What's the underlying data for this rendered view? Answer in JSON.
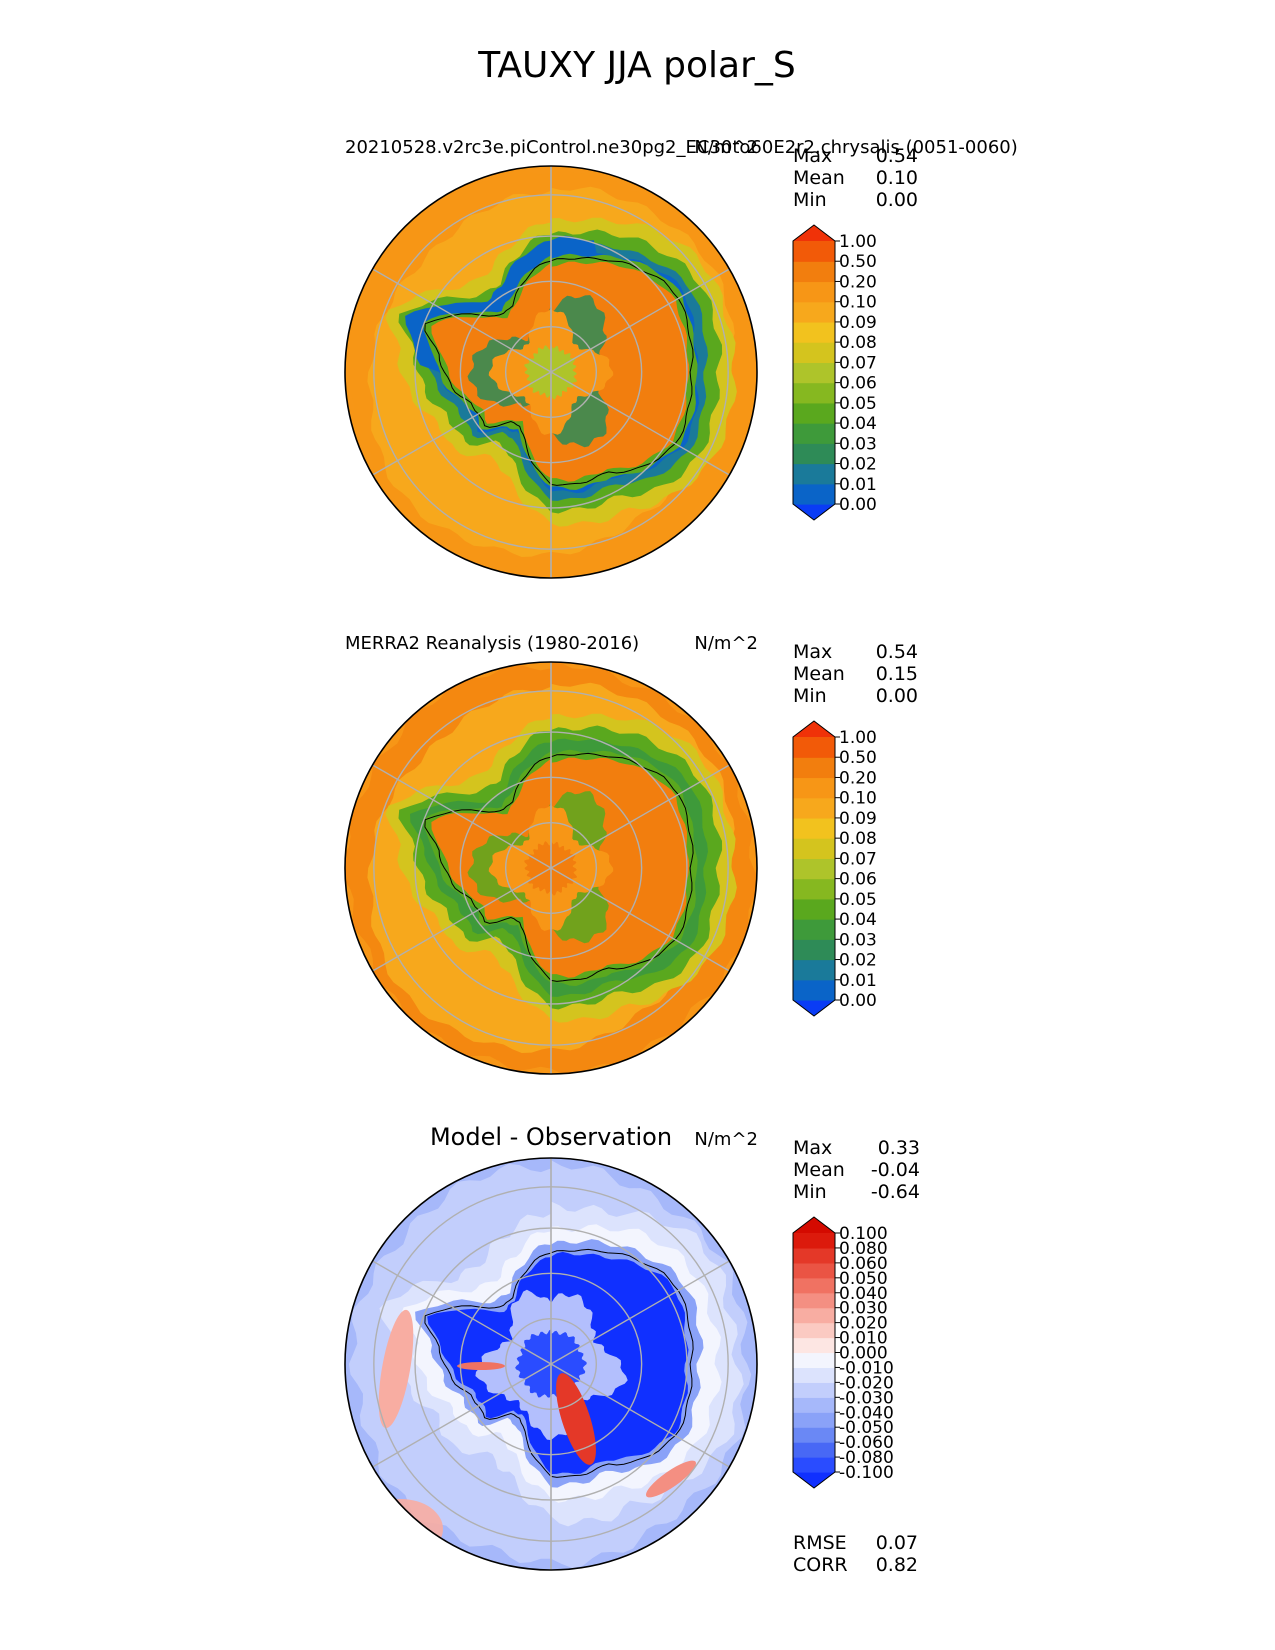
{
  "figure": {
    "suptitle": "TAUXY JJA polar_S"
  },
  "panels": [
    {
      "id": "test",
      "title_left": "20210528.v2rc3e.piControl.ne30pg2_EC30to60E2r2.chrysalis (0051-0060)",
      "units": "N/m^2",
      "stats": [
        {
          "label": "Max",
          "value": "0.54"
        },
        {
          "label": "Mean",
          "value": "0.10"
        },
        {
          "label": "Min",
          "value": "0.00"
        }
      ]
    },
    {
      "id": "reference",
      "title_left": "MERRA2 Reanalysis (1980-2016)",
      "units": "N/m^2",
      "stats": [
        {
          "label": "Max",
          "value": "0.54"
        },
        {
          "label": "Mean",
          "value": "0.15"
        },
        {
          "label": "Min",
          "value": "0.00"
        }
      ]
    },
    {
      "id": "diff",
      "title_center": "Model - Observation",
      "units": "N/m^2",
      "stats": [
        {
          "label": "Max",
          "value": "0.33"
        },
        {
          "label": "Mean",
          "value": "-0.04"
        },
        {
          "label": "Min",
          "value": "-0.64"
        }
      ],
      "extra_stats": [
        {
          "label": "RMSE",
          "value": "0.07"
        },
        {
          "label": "CORR",
          "value": "0.82"
        }
      ]
    }
  ],
  "chart_data": [
    {
      "type": "heatmap",
      "projection": "south polar stereographic",
      "title": "20210528.v2rc3e.piControl.ne30pg2_EC30to60E2r2.chrysalis (0051-0060)",
      "units": "N/m^2",
      "colorbar": {
        "levels": [
          "0.00",
          "0.01",
          "0.02",
          "0.03",
          "0.04",
          "0.05",
          "0.06",
          "0.07",
          "0.08",
          "0.09",
          "0.10",
          "0.20",
          "0.50",
          "1.00"
        ],
        "colors": [
          "#0a3cf5",
          "#0a64c8",
          "#1a7a9a",
          "#2e8b57",
          "#3e9a3a",
          "#5aa81e",
          "#86b820",
          "#aec42a",
          "#d4c41e",
          "#f2c21e",
          "#f7a81c",
          "#f79616",
          "#f27e0e",
          "#f25a08",
          "#f03208"
        ],
        "extend": "both"
      },
      "stats": {
        "max": 0.54,
        "mean": 0.1,
        "min": 0.0
      }
    },
    {
      "type": "heatmap",
      "projection": "south polar stereographic",
      "title": "MERRA2 Reanalysis (1980-2016)",
      "units": "N/m^2",
      "colorbar": {
        "levels": [
          "0.00",
          "0.01",
          "0.02",
          "0.03",
          "0.04",
          "0.05",
          "0.06",
          "0.07",
          "0.08",
          "0.09",
          "0.10",
          "0.20",
          "0.50",
          "1.00"
        ],
        "colors": [
          "#0a3cf5",
          "#0a64c8",
          "#1a7a9a",
          "#2e8b57",
          "#3e9a3a",
          "#5aa81e",
          "#86b820",
          "#aec42a",
          "#d4c41e",
          "#f2c21e",
          "#f7a81c",
          "#f79616",
          "#f27e0e",
          "#f25a08",
          "#f03208"
        ],
        "extend": "both"
      },
      "stats": {
        "max": 0.54,
        "mean": 0.15,
        "min": 0.0
      }
    },
    {
      "type": "heatmap",
      "projection": "south polar stereographic",
      "title": "Model - Observation",
      "units": "N/m^2",
      "colorbar": {
        "levels": [
          "-0.100",
          "-0.080",
          "-0.060",
          "-0.050",
          "-0.040",
          "-0.030",
          "-0.020",
          "-0.010",
          "0.000",
          "0.010",
          "0.020",
          "0.030",
          "0.040",
          "0.050",
          "0.060",
          "0.080",
          "0.100"
        ],
        "colors": [
          "#1030ff",
          "#2a4cff",
          "#4868f5",
          "#6a88f5",
          "#8aa2f8",
          "#a6b8fa",
          "#c2cefc",
          "#dce3fd",
          "#f3f5fe",
          "#fde6e3",
          "#fbcac2",
          "#f8ada2",
          "#f48f82",
          "#f07262",
          "#ea5444",
          "#e43828",
          "#dc1a0c",
          "#d40a00"
        ],
        "extend": "both"
      },
      "stats": {
        "max": 0.33,
        "mean": -0.04,
        "min": -0.64,
        "rmse": 0.07,
        "corr": 0.82
      }
    }
  ]
}
